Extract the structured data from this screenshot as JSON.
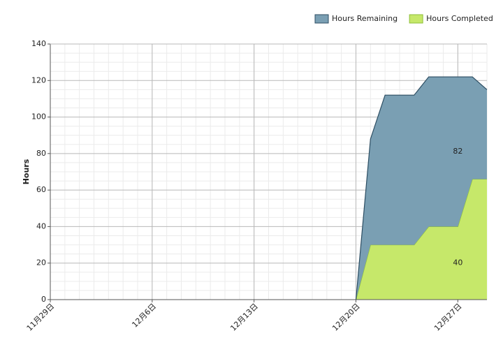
{
  "chart_data": {
    "type": "stacked_area",
    "y_label": "Hours",
    "categories": [
      "11月29日",
      null,
      null,
      null,
      null,
      null,
      null,
      "12月6日",
      null,
      null,
      null,
      null,
      null,
      null,
      "12月13日",
      null,
      null,
      null,
      null,
      null,
      null,
      "12月20日",
      null,
      null,
      null,
      null,
      null,
      null,
      "12月27日",
      null,
      null
    ],
    "series": [
      {
        "name": "Hours Completed",
        "color": "#c6e86a",
        "stroke": "#8fbf3a",
        "values": [
          null,
          null,
          null,
          null,
          null,
          null,
          null,
          null,
          null,
          null,
          null,
          null,
          null,
          null,
          null,
          null,
          null,
          null,
          null,
          null,
          null,
          0,
          30,
          30,
          30,
          30,
          40,
          40,
          40,
          66,
          66
        ],
        "value_labels": [
          null,
          null,
          null,
          null,
          null,
          null,
          null,
          null,
          null,
          null,
          null,
          null,
          null,
          null,
          null,
          null,
          null,
          null,
          null,
          null,
          null,
          null,
          null,
          null,
          null,
          null,
          null,
          null,
          "40",
          null,
          null
        ]
      },
      {
        "name": "Hours Remaining",
        "color": "#7a9fb3",
        "stroke": "#2d4e63",
        "values": [
          null,
          null,
          null,
          null,
          null,
          null,
          null,
          null,
          null,
          null,
          null,
          null,
          null,
          null,
          null,
          null,
          null,
          null,
          null,
          null,
          null,
          0,
          58,
          82,
          82,
          82,
          82,
          82,
          82,
          56,
          49
        ],
        "value_labels": [
          null,
          null,
          null,
          null,
          null,
          null,
          null,
          null,
          null,
          null,
          null,
          null,
          null,
          null,
          null,
          null,
          null,
          null,
          null,
          null,
          null,
          null,
          null,
          null,
          null,
          null,
          null,
          null,
          "82",
          null,
          null
        ]
      }
    ],
    "legend_order": [
      1,
      0
    ],
    "ylim": [
      0,
      140
    ],
    "yticks": [
      0,
      20,
      40,
      60,
      80,
      100,
      120,
      140
    ],
    "grid": true
  }
}
